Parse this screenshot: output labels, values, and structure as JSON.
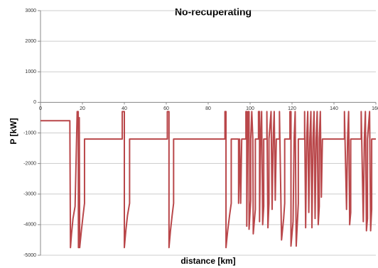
{
  "chart_data": {
    "type": "line",
    "title": "No-recuperating",
    "x_label": "distance [km]",
    "y_label": "P [kW]",
    "xlim": [
      0,
      160
    ],
    "xticks": [
      0,
      20,
      40,
      60,
      80,
      100,
      120,
      140,
      160
    ],
    "ylim": [
      -5000,
      3000
    ],
    "yticks": [
      -5000,
      -4000,
      -3000,
      -2000,
      -1000,
      0,
      1000,
      2000,
      3000
    ],
    "grid": true,
    "x": [
      0,
      14,
      14.3,
      14.8,
      15.5,
      16.5,
      17.5,
      18,
      18.1,
      18.5,
      18.7,
      19.5,
      20.3,
      21,
      21,
      39,
      39,
      40,
      40,
      40.7,
      41.5,
      42.5,
      42.5,
      60.5,
      60.5,
      61.3,
      61.3,
      62,
      62.8,
      63.5,
      63.5,
      88,
      88,
      88.5,
      88.5,
      89.3,
      90.2,
      91,
      91,
      94.5,
      94.5,
      95,
      95.5,
      96,
      98,
      98,
      98.4,
      98.4,
      98.8,
      99,
      99.5,
      99.5,
      100.3,
      100.3,
      100.8,
      101.3,
      101.5,
      102.5,
      102.5,
      104,
      104,
      104.5,
      104.5,
      105,
      105.5,
      106,
      106.5,
      106.5,
      108,
      108,
      108.5,
      109,
      109,
      110,
      110.5,
      111,
      111.5,
      112,
      112.5,
      114,
      114,
      115,
      116,
      116.5,
      116.5,
      119,
      119,
      119.5,
      119.5,
      120.5,
      121,
      121.5,
      122,
      123,
      123,
      126,
      126,
      126.5,
      127,
      127.5,
      128,
      128.5,
      129,
      129.5,
      130,
      130.5,
      131,
      131.5,
      132,
      132.5,
      133,
      133,
      133.5,
      134,
      134.5,
      145,
      145,
      146,
      146.5,
      147,
      147.5,
      148,
      148,
      153,
      153,
      154,
      154.5,
      155,
      155.5,
      156,
      156,
      157,
      157.5,
      158,
      158,
      160
    ],
    "series": [
      {
        "color": "#b9474a",
        "values": [
          -600,
          -600,
          -4750,
          -4300,
          -3800,
          -3400,
          -300,
          -300,
          -4750,
          -500,
          -4750,
          -4200,
          -3700,
          -3300,
          -1200,
          -1200,
          -300,
          -300,
          -4750,
          -4200,
          -3700,
          -3300,
          -1200,
          -1200,
          -300,
          -300,
          -4750,
          -4200,
          -3700,
          -3300,
          -1200,
          -1200,
          -300,
          -300,
          -4750,
          -4200,
          -3700,
          -3300,
          -1200,
          -1200,
          -3300,
          -1200,
          -3300,
          -1200,
          -1200,
          -300,
          -300,
          -4050,
          -1200,
          -300,
          -300,
          -4150,
          -3200,
          -1200,
          -300,
          -1200,
          -4300,
          -3500,
          -1200,
          -1200,
          -300,
          -300,
          -3900,
          -1200,
          -300,
          -4000,
          -3400,
          -1200,
          -1200,
          -300,
          -4100,
          -3300,
          -1200,
          -300,
          -3500,
          -1200,
          -300,
          -3200,
          -1200,
          -1200,
          -300,
          -4500,
          -3800,
          -3300,
          -1200,
          -1200,
          -300,
          -300,
          -4700,
          -3900,
          -1200,
          -300,
          -4700,
          -3300,
          -1200,
          -1200,
          -300,
          -4100,
          -1200,
          -300,
          -3600,
          -1200,
          -300,
          -4100,
          -1200,
          -300,
          -3800,
          -1200,
          -300,
          -4000,
          -3400,
          -1200,
          -300,
          -3100,
          -1200,
          -1200,
          -300,
          -3500,
          -1200,
          -300,
          -4000,
          -3600,
          -1200,
          -1200,
          -300,
          -3900,
          -1200,
          -300,
          -4200,
          -3800,
          -1200,
          -300,
          -4200,
          -3500,
          -1200,
          -1200
        ]
      }
    ]
  }
}
